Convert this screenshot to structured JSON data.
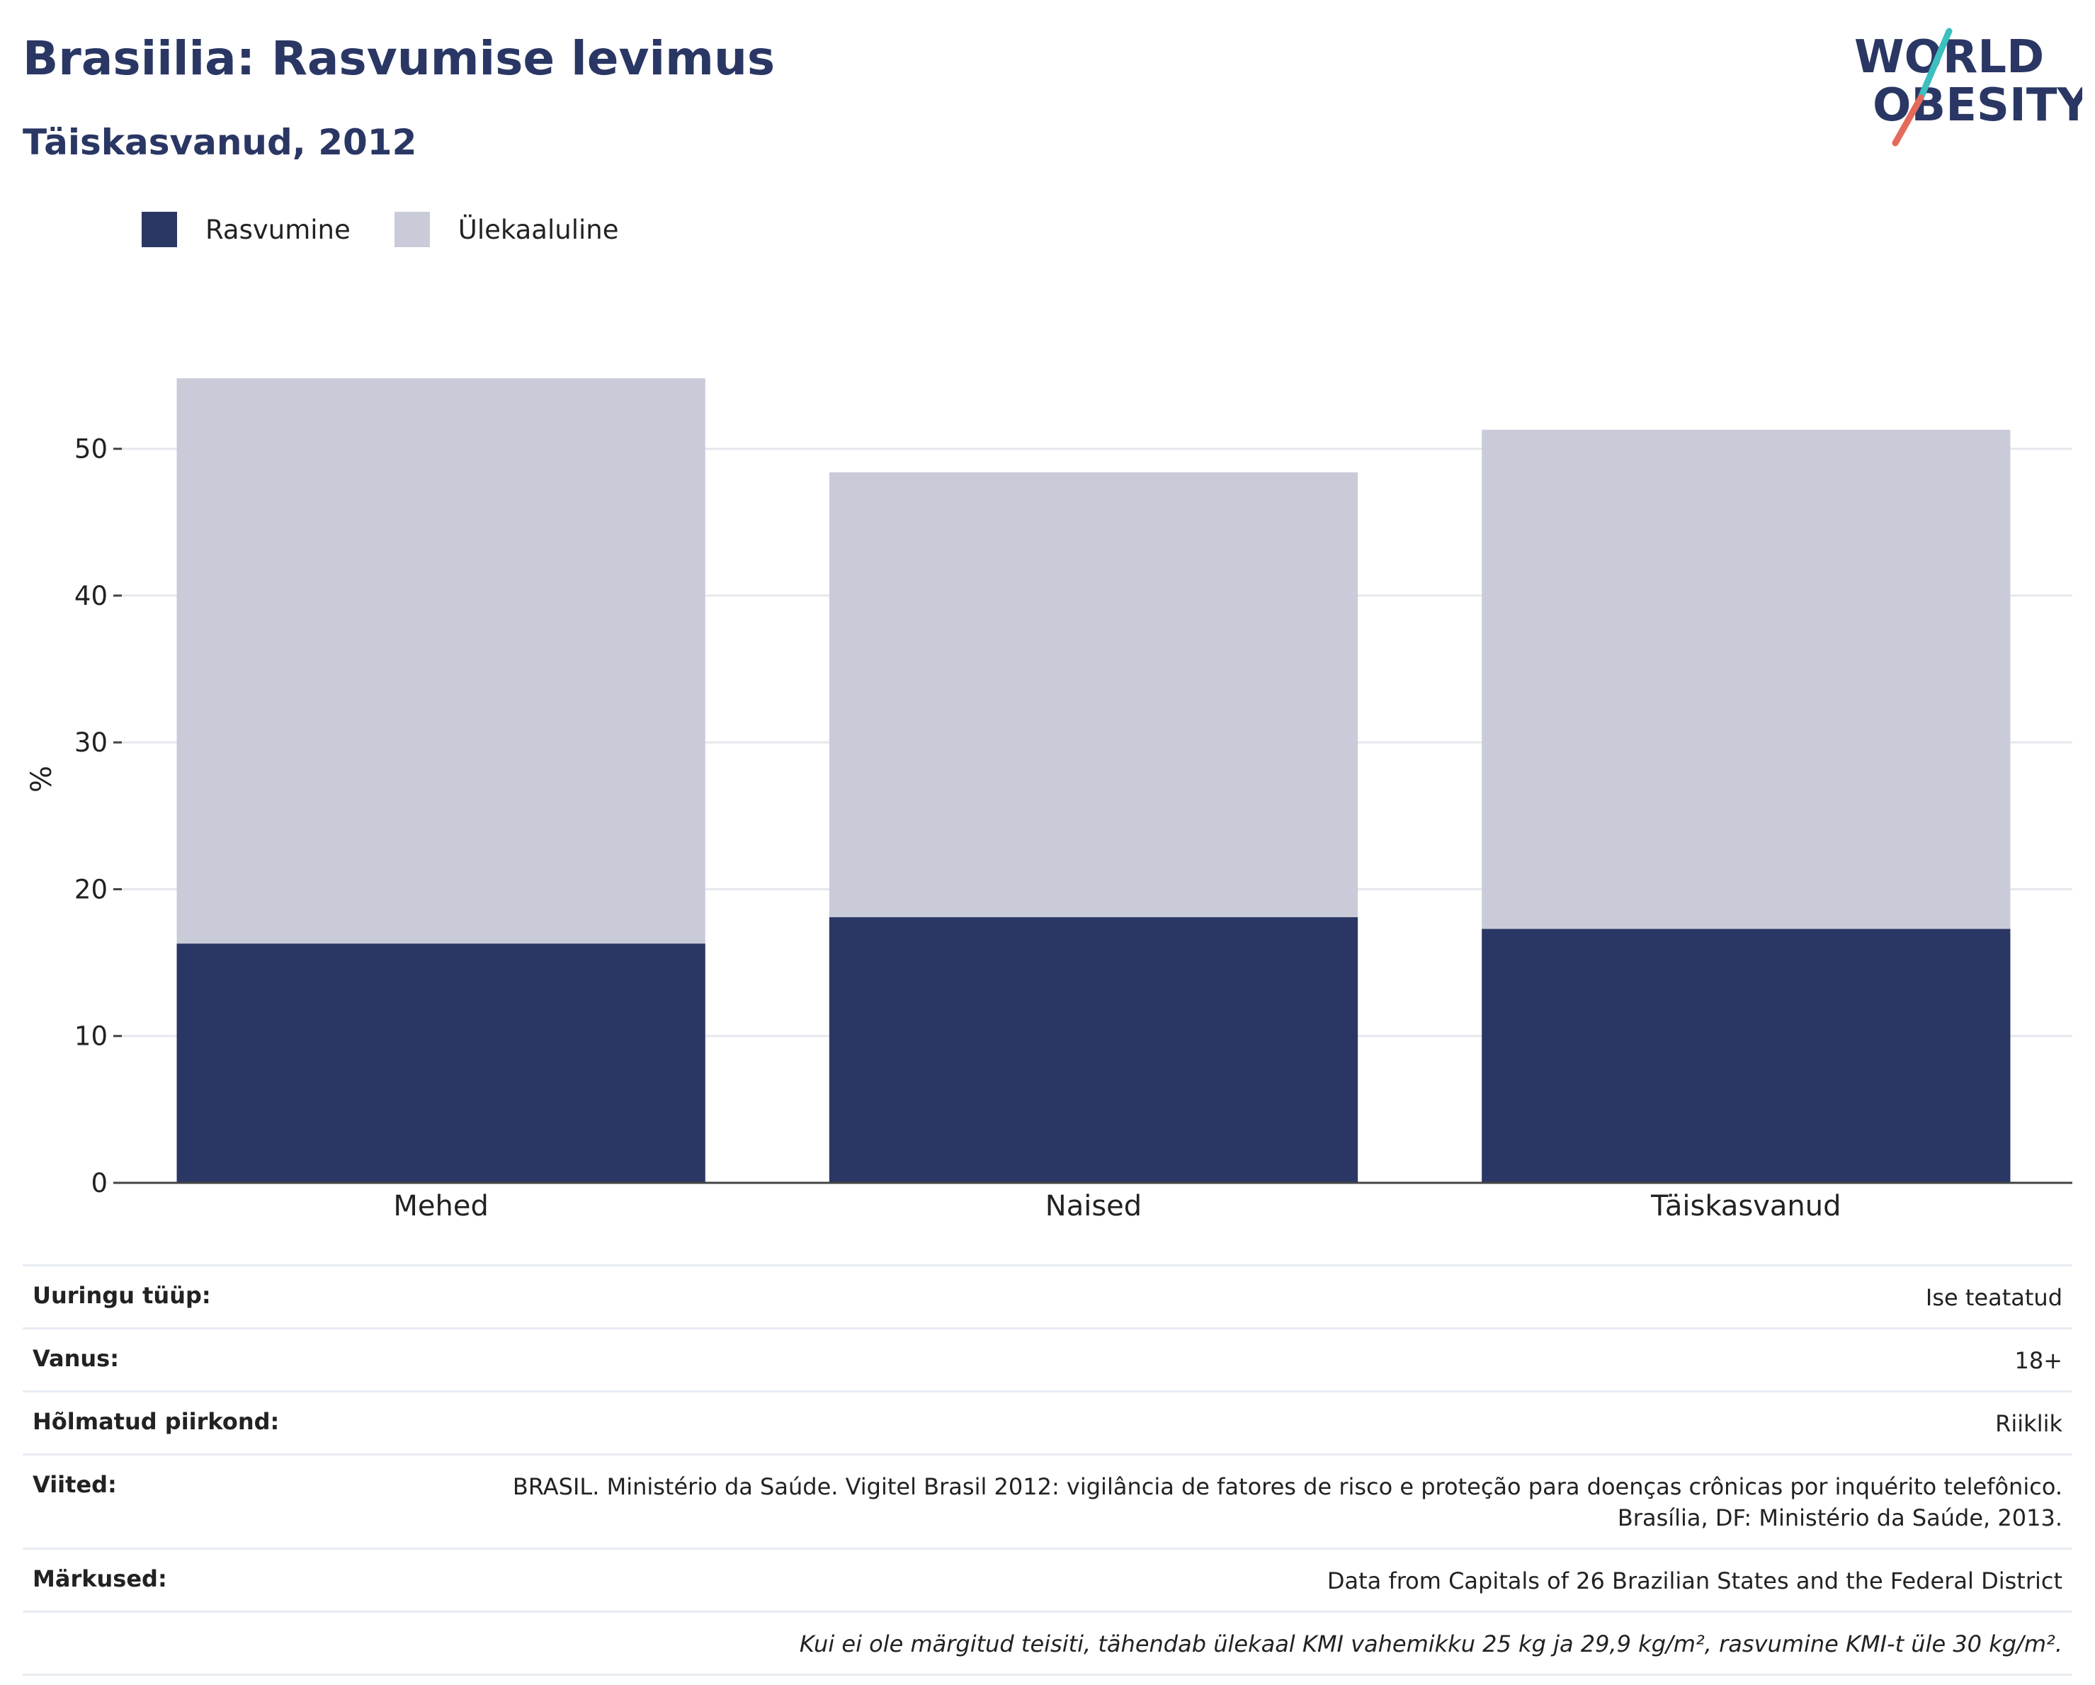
{
  "header": {
    "title": "Brasiilia: Rasvumise levimus",
    "subtitle": "Täiskasvanud, 2012"
  },
  "logo": {
    "line1": "WORLD",
    "line2": "OBESITY",
    "colors": {
      "text": "#2a3764",
      "slash_top": "#3bbfbf",
      "slash_bottom": "#e46a5b"
    }
  },
  "legend": {
    "items": [
      {
        "label": "Rasvumine",
        "color": "#2a3764"
      },
      {
        "label": "Ülekaaluline",
        "color": "#c9ccd8"
      }
    ]
  },
  "chart_data": {
    "type": "bar",
    "stacked": true,
    "categories": [
      "Mehed",
      "Naised",
      "Täiskasvanud"
    ],
    "series": [
      {
        "name": "Rasvumine",
        "values": [
          16.3,
          18.1,
          17.3
        ],
        "color": "#2a3764"
      },
      {
        "name": "Ülekaaluline",
        "values": [
          38.5,
          30.3,
          34.0
        ],
        "color": "#c9ccd8"
      }
    ],
    "ylabel": "%",
    "ylim": [
      0,
      55
    ],
    "yticks": [
      0,
      10,
      20,
      30,
      40,
      50
    ],
    "grid": true,
    "legend_position": "top-left"
  },
  "metadata_table": {
    "rows": [
      {
        "label": "Uuringu tüüp:",
        "value": "Ise teatatud"
      },
      {
        "label": "Vanus:",
        "value": "18+"
      },
      {
        "label": "Hõlmatud piirkond:",
        "value": "Riiklik"
      },
      {
        "label": "Viited:",
        "value_line1": "BRASIL. Ministério da Saúde. Vigitel Brasil 2012: vigilância de fatores de risco e proteção para doenças crônicas por inquérito telefônico.",
        "value_line2": "Brasília, DF: Ministério da Saúde, 2013."
      },
      {
        "label": "Märkused:",
        "value": "Data from Capitals of 26 Brazilian States and the Federal District"
      }
    ],
    "note": "Kui ei ole märgitud teisiti, tähendab ülekaal KMI vahemikku 25 kg ja 29,9 kg/m², rasvumine KMI-t üle 30 kg/m²."
  }
}
